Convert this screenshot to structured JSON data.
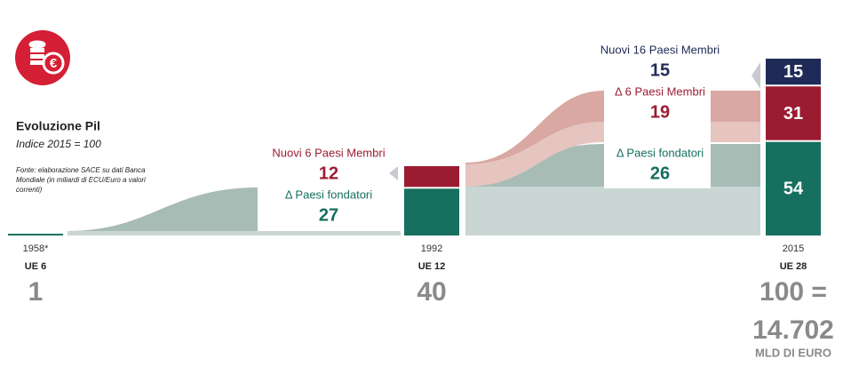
{
  "title": "Evoluzione Pil",
  "subtitle": "Indice 2015 = 100",
  "source": [
    "Fonte: elaborazione SACE su dati Banca",
    "Mondiale (in miliardi di ECU/Euro a valori",
    "correnti)"
  ],
  "periods": [
    {
      "year": "1958*",
      "group": "UE 6",
      "index": 1,
      "bar_labels": false,
      "segments": [
        {
          "value": 1,
          "color": "#166f5f"
        }
      ]
    },
    {
      "year": "1992",
      "group": "UE 12",
      "index": 40,
      "bar_labels": false,
      "segments": [
        {
          "value": 27,
          "color": "#166f5f"
        },
        {
          "value": 12,
          "color": "#9b1c31"
        }
      ]
    },
    {
      "year": "2015",
      "group": "UE 28",
      "index": 100,
      "index_label": "100 =",
      "total": "14.702",
      "total_unit": "MLD DI EURO",
      "bar_labels": true,
      "segments": [
        {
          "value": 54,
          "color": "#166f5f"
        },
        {
          "value": 31,
          "color": "#9b1c31"
        },
        {
          "value": 15,
          "color": "#1f2a56"
        }
      ]
    }
  ],
  "transitions": [
    {
      "labels": [
        {
          "text": "Nuovi 6 Paesi Membri",
          "value": 12,
          "color": "#9b1c31"
        },
        {
          "text": "Δ Paesi fondatori",
          "value": 27,
          "color": "#166f5f"
        }
      ]
    },
    {
      "labels": [
        {
          "text": "Nuovi 16 Paesi Membri",
          "value": 15,
          "color": "#1f2a56"
        },
        {
          "text": "Δ 6 Paesi Membri",
          "value": 19,
          "color": "#9b1c31"
        },
        {
          "text": "Δ Paesi fondatori",
          "value": 26,
          "color": "#166f5f"
        }
      ]
    }
  ]
}
